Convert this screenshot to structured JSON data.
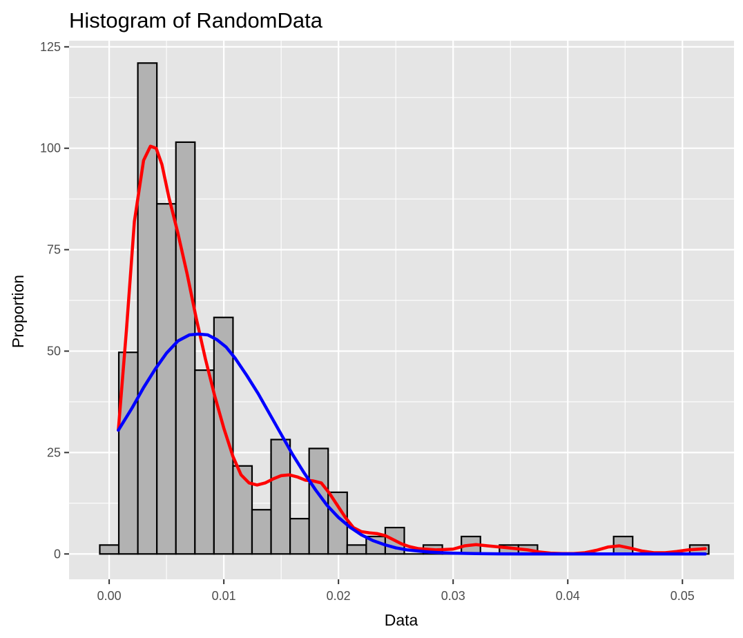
{
  "chart_data": {
    "type": "bar",
    "title": "Histogram of RandomData",
    "xlabel": "Data",
    "ylabel": "Proportion",
    "xlim": [
      -0.0035,
      0.0545
    ],
    "ylim": [
      -6.25,
      126.5
    ],
    "x_ticks": [
      0.0,
      0.01,
      0.02,
      0.03,
      0.04,
      0.05
    ],
    "x_tick_labels": [
      "0.00",
      "0.01",
      "0.02",
      "0.03",
      "0.04",
      "0.05"
    ],
    "y_ticks": [
      0,
      25,
      50,
      75,
      100,
      125
    ],
    "y_tick_labels": [
      "0",
      "25",
      "50",
      "75",
      "100",
      "125"
    ],
    "grid": true,
    "bin_width": 0.00166,
    "bins": {
      "x_centers": [
        1e-05,
        0.00167,
        0.00333,
        0.00499,
        0.00665,
        0.00831,
        0.00997,
        0.01163,
        0.01329,
        0.01495,
        0.01661,
        0.01827,
        0.01993,
        0.02159,
        0.02325,
        0.02491,
        0.02657,
        0.02823,
        0.02989,
        0.03155,
        0.03321,
        0.03487,
        0.03653,
        0.03819,
        0.03985,
        0.04151,
        0.04317,
        0.04483,
        0.04649,
        0.04815,
        0.04981,
        0.05147
      ],
      "values": [
        2.2,
        49.7,
        121.0,
        86.3,
        101.5,
        45.3,
        58.3,
        21.7,
        10.9,
        28.2,
        8.7,
        26.0,
        15.2,
        2.2,
        4.3,
        6.5,
        0,
        2.2,
        0,
        4.3,
        0,
        2.2,
        2.2,
        0,
        0,
        0,
        0,
        4.3,
        0,
        0,
        0,
        2.2
      ]
    },
    "series": [
      {
        "kind": "density-empirical",
        "color": "#ff0000",
        "x": [
          0.0008,
          0.0015,
          0.0022,
          0.003,
          0.0036,
          0.0041,
          0.0046,
          0.0052,
          0.006,
          0.0068,
          0.0076,
          0.0084,
          0.0092,
          0.01,
          0.0108,
          0.0115,
          0.0122,
          0.0129,
          0.0136,
          0.0143,
          0.015,
          0.0157,
          0.0164,
          0.0171,
          0.0178,
          0.0185,
          0.0192,
          0.0199,
          0.0206,
          0.0213,
          0.022,
          0.0227,
          0.0234,
          0.0241,
          0.0248,
          0.0255,
          0.0262,
          0.027,
          0.0285,
          0.03,
          0.031,
          0.032,
          0.033,
          0.0345,
          0.0355,
          0.0365,
          0.0375,
          0.0385,
          0.0395,
          0.0405,
          0.0415,
          0.0425,
          0.0435,
          0.0445,
          0.0455,
          0.0465,
          0.0475,
          0.0485,
          0.0495,
          0.0505,
          0.0515,
          0.052
        ],
        "values": [
          30.5,
          55,
          82,
          97,
          100.5,
          100,
          96,
          88,
          79,
          69,
          58,
          48,
          39,
          31,
          24,
          19.5,
          17.5,
          17,
          17.5,
          18.5,
          19.3,
          19.5,
          19,
          18.2,
          18,
          17.5,
          15,
          12,
          9,
          6.5,
          5.5,
          5.2,
          5,
          4.5,
          3.5,
          2.5,
          1.8,
          1.3,
          1,
          1.2,
          2.0,
          2.3,
          2.0,
          1.6,
          1.3,
          1.0,
          0.5,
          0.2,
          0.1,
          0.1,
          0.3,
          0.9,
          1.7,
          2.0,
          1.4,
          0.7,
          0.3,
          0.3,
          0.6,
          1.0,
          1.2,
          1.3
        ]
      },
      {
        "kind": "density-normal",
        "color": "#0000ff",
        "x": [
          0.0008,
          0.002,
          0.003,
          0.004,
          0.005,
          0.006,
          0.007,
          0.0078,
          0.0086,
          0.0094,
          0.0102,
          0.011,
          0.012,
          0.013,
          0.014,
          0.015,
          0.016,
          0.017,
          0.018,
          0.019,
          0.02,
          0.021,
          0.022,
          0.023,
          0.024,
          0.025,
          0.026,
          0.027,
          0.028,
          0.029,
          0.03,
          0.032,
          0.034,
          0.036,
          0.038,
          0.04,
          0.044,
          0.048,
          0.052
        ],
        "values": [
          30.5,
          36,
          41,
          45.5,
          49.5,
          52.5,
          54,
          54.2,
          54,
          52.8,
          51,
          48.2,
          44,
          39.5,
          34.5,
          29.5,
          24.5,
          20,
          15.8,
          12,
          9,
          6.6,
          4.7,
          3.3,
          2.3,
          1.5,
          1.0,
          0.7,
          0.45,
          0.3,
          0.2,
          0.08,
          0.03,
          0.01,
          0,
          0,
          0,
          0,
          0
        ]
      }
    ]
  }
}
